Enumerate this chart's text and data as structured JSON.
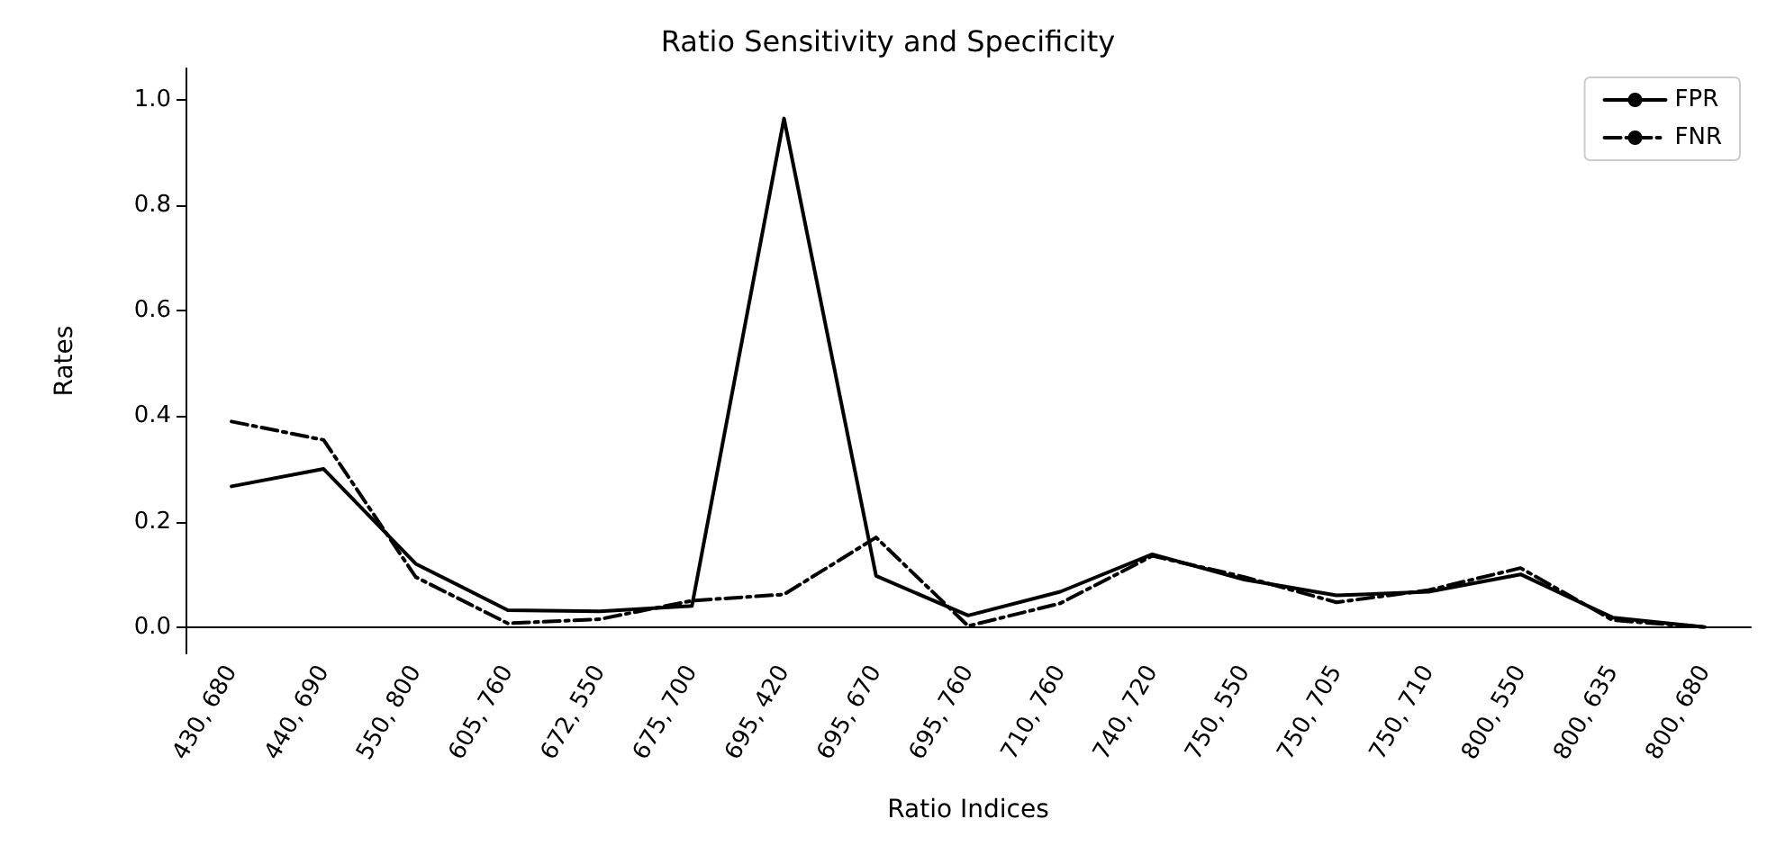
{
  "chart_data": {
    "type": "line",
    "title": "Ratio Sensitivity and Specificity",
    "xlabel": "Ratio Indices",
    "ylabel": "Rates",
    "categories": [
      "430, 680",
      "440, 690",
      "550, 800",
      "605, 760",
      "672, 550",
      "675, 700",
      "695, 420",
      "695, 670",
      "695, 760",
      "710, 760",
      "740, 720",
      "750, 550",
      "750, 705",
      "750, 710",
      "800, 550",
      "800, 635",
      "800, 680"
    ],
    "series": [
      {
        "name": "FPR",
        "color": "#000000",
        "line_style": "solid",
        "values": [
          0.267,
          0.3,
          0.12,
          0.032,
          0.03,
          0.04,
          0.965,
          0.097,
          0.022,
          0.067,
          0.138,
          0.09,
          0.06,
          0.067,
          0.1,
          0.018,
          0.0
        ]
      },
      {
        "name": "FNR",
        "color": "#000000",
        "line_style": "dashdot",
        "values": [
          0.39,
          0.355,
          0.095,
          0.007,
          0.015,
          0.05,
          0.062,
          0.17,
          0.002,
          0.045,
          0.135,
          0.095,
          0.047,
          0.07,
          0.112,
          0.013,
          0.0
        ]
      }
    ],
    "ylim": [
      -0.05,
      1.06
    ],
    "yticks": [
      {
        "value": 0,
        "label": "0.0"
      },
      {
        "value": 0.2,
        "label": "0.2"
      },
      {
        "value": 0.4,
        "label": "0.4"
      },
      {
        "value": 0.6,
        "label": "0.6"
      },
      {
        "value": 0.8,
        "label": "0.8"
      },
      {
        "value": 1,
        "label": "1.0"
      }
    ],
    "grid": false,
    "legend": "top right",
    "marker": "none"
  }
}
